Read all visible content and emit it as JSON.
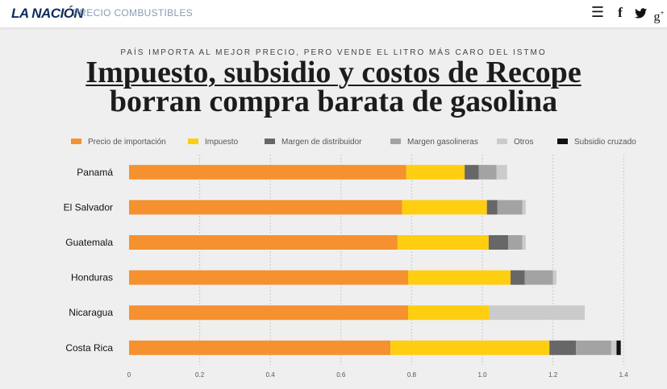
{
  "header": {
    "logo": "LA NACIÓN",
    "section": "PRECIO COMBUSTIBLES",
    "icons": [
      "menu-icon",
      "facebook-icon",
      "twitter-icon",
      "google-plus-icon"
    ]
  },
  "kicker": "PAÍS IMPORTA AL MEJOR PRECIO, PERO VENDE EL LITRO MÁS CARO DEL ISTMO",
  "headline": {
    "line1": "Impuesto, subsidio y costos de Recope",
    "line2": "borran compra barata de gasolina"
  },
  "chart_data": {
    "type": "bar",
    "orientation": "horizontal",
    "stacked": true,
    "categories": [
      "Panamá",
      "El Salvador",
      "Guatemala",
      "Honduras",
      "Nicaragua",
      "Costa Rica"
    ],
    "series": [
      {
        "name": "Precio de importación",
        "color": "#f5912f",
        "values": [
          0.785,
          0.773,
          0.76,
          0.79,
          0.79,
          0.74
        ]
      },
      {
        "name": "Impuesto",
        "color": "#ffce10",
        "values": [
          0.165,
          0.24,
          0.258,
          0.29,
          0.23,
          0.45
        ]
      },
      {
        "name": "Margen de distribuidor",
        "color": "#676767",
        "values": [
          0.04,
          0.03,
          0.055,
          0.04,
          0.0,
          0.075
        ]
      },
      {
        "name": "Margen gasolineras",
        "color": "#a3a3a3",
        "values": [
          0.05,
          0.07,
          0.04,
          0.08,
          0.0,
          0.1
        ]
      },
      {
        "name": "Otros",
        "color": "#cbcbcb",
        "values": [
          0.03,
          0.01,
          0.01,
          0.01,
          0.27,
          0.015
        ]
      },
      {
        "name": "Subsidio cruzado",
        "color": "#111111",
        "values": [
          0.0,
          0.0,
          0.0,
          0.0,
          0.0,
          0.012
        ]
      }
    ],
    "xticks": [
      "0",
      "0.2",
      "0.4",
      "0.6",
      "0.8",
      "1.0",
      "1.2",
      "1.4"
    ],
    "xlim": [
      0,
      1.4
    ],
    "grid": true,
    "legend_position": "top"
  }
}
